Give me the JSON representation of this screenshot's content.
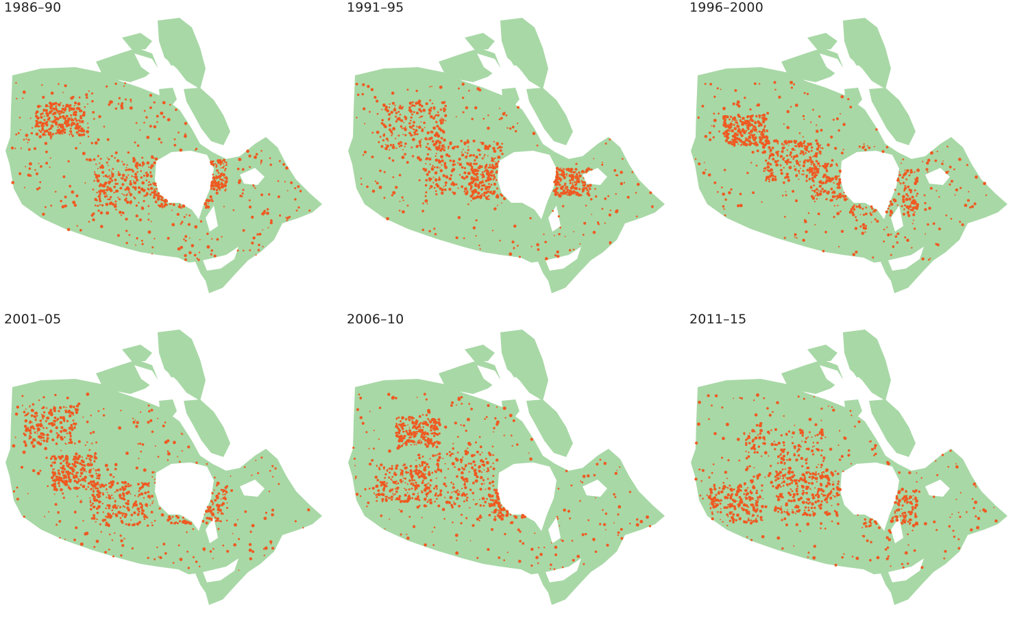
{
  "colors": {
    "land": "#a8d8a6",
    "fire": "#ee5a22",
    "water": "#ffffff"
  },
  "panels": [
    {
      "title": "1986–90",
      "hotspots": [
        [
          0.38,
          0.55,
          2.2
        ],
        [
          0.55,
          0.58,
          1.6
        ],
        [
          0.15,
          0.25,
          1.2
        ],
        [
          0.62,
          0.52,
          1.0
        ]
      ],
      "seed": 11
    },
    {
      "title": "1991–95",
      "hotspots": [
        [
          0.18,
          0.28,
          2.0
        ],
        [
          0.35,
          0.48,
          2.4
        ],
        [
          0.45,
          0.55,
          1.3
        ],
        [
          0.7,
          0.55,
          0.8
        ]
      ],
      "seed": 23
    },
    {
      "title": "1996–2000",
      "hotspots": [
        [
          0.3,
          0.45,
          1.6
        ],
        [
          0.6,
          0.6,
          2.0
        ],
        [
          0.15,
          0.3,
          1.0
        ],
        [
          0.45,
          0.55,
          1.4
        ]
      ],
      "seed": 37
    },
    {
      "title": "2001–05",
      "hotspots": [
        [
          0.12,
          0.22,
          1.4
        ],
        [
          0.35,
          0.6,
          1.8
        ],
        [
          0.6,
          0.6,
          1.6
        ],
        [
          0.2,
          0.45,
          1.2
        ]
      ],
      "seed": 41
    },
    {
      "title": "2006–10",
      "hotspots": [
        [
          0.32,
          0.48,
          2.4
        ],
        [
          0.15,
          0.5,
          1.4
        ],
        [
          0.5,
          0.6,
          1.0
        ],
        [
          0.2,
          0.25,
          1.0
        ]
      ],
      "seed": 53
    },
    {
      "title": "2011–15",
      "hotspots": [
        [
          0.28,
          0.38,
          2.6
        ],
        [
          0.35,
          0.55,
          1.8
        ],
        [
          0.62,
          0.62,
          1.4
        ],
        [
          0.12,
          0.6,
          1.4
        ]
      ],
      "seed": 67
    }
  ]
}
